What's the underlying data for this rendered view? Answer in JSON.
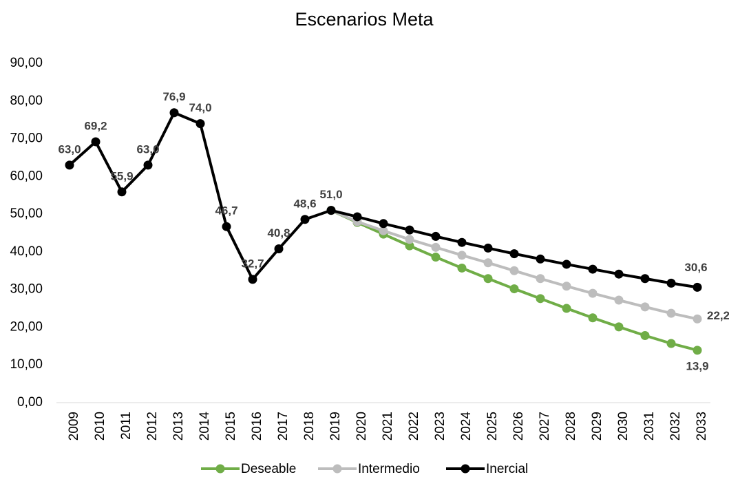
{
  "chart_data": {
    "type": "line",
    "title": "Escenarios Meta",
    "categories": [
      "2009",
      "2010",
      "2011",
      "2012",
      "2013",
      "2014",
      "2015",
      "2016",
      "2017",
      "2018",
      "2019",
      "2020",
      "2021",
      "2022",
      "2023",
      "2024",
      "2025",
      "2026",
      "2027",
      "2028",
      "2029",
      "2030",
      "2031",
      "2032",
      "2033"
    ],
    "series": [
      {
        "name": "Deseable",
        "color": "#70ad47",
        "values": [
          null,
          null,
          null,
          null,
          null,
          null,
          null,
          null,
          null,
          null,
          51.0,
          47.8,
          44.7,
          41.6,
          38.6,
          35.7,
          32.9,
          30.2,
          27.6,
          25.0,
          22.5,
          20.1,
          17.8,
          15.7,
          13.9
        ],
        "value_labels": [
          null,
          null,
          null,
          null,
          null,
          null,
          null,
          null,
          null,
          null,
          null,
          null,
          null,
          null,
          null,
          null,
          null,
          null,
          null,
          null,
          null,
          null,
          null,
          null,
          "13,9"
        ]
      },
      {
        "name": "Intermedio",
        "color": "#bdbdbd",
        "values": [
          null,
          null,
          null,
          null,
          null,
          null,
          null,
          null,
          null,
          null,
          51.0,
          48.0,
          45.6,
          43.3,
          41.2,
          39.1,
          37.1,
          35.0,
          32.9,
          30.9,
          29.0,
          27.2,
          25.4,
          23.7,
          22.2
        ],
        "value_labels": [
          null,
          null,
          null,
          null,
          null,
          null,
          null,
          null,
          null,
          null,
          null,
          null,
          null,
          null,
          null,
          null,
          null,
          null,
          null,
          null,
          null,
          null,
          null,
          null,
          "22,2"
        ]
      },
      {
        "name": "Inercial",
        "color": "#000000",
        "values": [
          63.0,
          69.2,
          55.9,
          63.0,
          76.9,
          74.0,
          46.7,
          32.7,
          40.8,
          48.6,
          51.0,
          49.3,
          47.5,
          45.8,
          44.1,
          42.5,
          41.0,
          39.5,
          38.1,
          36.7,
          35.4,
          34.1,
          32.9,
          31.7,
          30.6
        ],
        "value_labels": [
          "63,0",
          "69,2",
          "55,9",
          "63,0",
          "76,9",
          "74,0",
          "46,7",
          "32,7",
          "40,8",
          "48,6",
          "51,0",
          null,
          null,
          null,
          null,
          null,
          null,
          null,
          null,
          null,
          null,
          null,
          null,
          null,
          "30,6"
        ]
      }
    ],
    "ylim": [
      0,
      90
    ],
    "yticks": [
      {
        "value": 0,
        "label": "0,00"
      },
      {
        "value": 10,
        "label": "10,00"
      },
      {
        "value": 20,
        "label": "20,00"
      },
      {
        "value": 30,
        "label": "30,00"
      },
      {
        "value": 40,
        "label": "40,00"
      },
      {
        "value": 50,
        "label": "50,00"
      },
      {
        "value": 60,
        "label": "60,00"
      },
      {
        "value": 70,
        "label": "70,00"
      },
      {
        "value": 80,
        "label": "80,00"
      },
      {
        "value": 90,
        "label": "90,00"
      }
    ],
    "grid": false,
    "legend": "bottom"
  }
}
